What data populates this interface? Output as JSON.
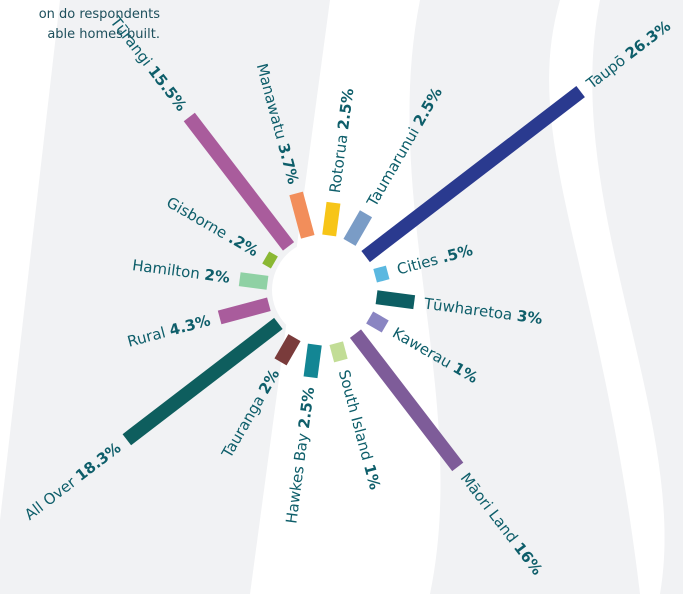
{
  "chart_data": {
    "type": "radial-bar",
    "title_lines": [
      "on do respondents",
      "able homes built."
    ],
    "categories": [
      "Manawatu",
      "Rotorua",
      "Taumarunui",
      "Taupō",
      "Cities",
      "Tūwharetoa",
      "Kawerau",
      "Māori Land",
      "South Island",
      "Hawkes Bay",
      "Tauranga",
      "All Over",
      "Rural",
      "Hamilton",
      "Gisborne",
      "Tūrangi"
    ],
    "values": [
      3.7,
      2.5,
      2.5,
      26.3,
      0.5,
      3,
      1,
      16,
      1,
      2.5,
      2,
      18.3,
      4.3,
      2,
      0.2,
      15.5
    ],
    "value_labels": [
      "3.7%",
      "2.5%",
      "2.5%",
      "26.3%",
      ".5%",
      "3%",
      "1%",
      "16%",
      "1%",
      "2.5%",
      "2%",
      "18.3%",
      "4.3%",
      "2%",
      ".2%",
      "15.5%"
    ],
    "colors": [
      "#f28e5b",
      "#f7c518",
      "#7a9cc6",
      "#2a3a8f",
      "#5bb8e0",
      "#0d5e63",
      "#8a85c2",
      "#7e5c99",
      "#c2dd96",
      "#138694",
      "#7a3b3b",
      "#0e5e5e",
      "#a95c9c",
      "#8fd1a4",
      "#8ab833",
      "#a95c9c"
    ]
  }
}
